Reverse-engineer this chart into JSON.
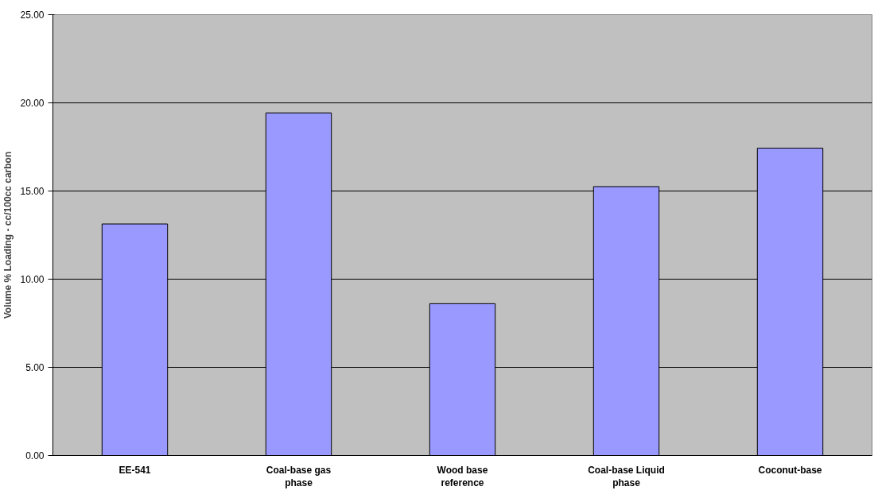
{
  "chart_data": {
    "type": "bar",
    "ylabel": "Volume % Loading - cc/100cc carbon",
    "categories": [
      "EE-541",
      "Coal-base gas phase",
      "Wood base reference",
      "Coal-base Liquid phase",
      "Coconut-base"
    ],
    "values": [
      13.13,
      19.43,
      8.61,
      15.25,
      17.43
    ],
    "color": "#9999ff",
    "ylim": [
      0,
      25
    ],
    "yticks": [
      {
        "value": 0,
        "label": "0.00"
      },
      {
        "value": 5,
        "label": "5.00"
      },
      {
        "value": 10,
        "label": "10.00"
      },
      {
        "value": 15,
        "label": "15.00"
      },
      {
        "value": 20,
        "label": "20.00"
      },
      {
        "value": 25,
        "label": "25.00"
      }
    ],
    "grid": "y"
  }
}
